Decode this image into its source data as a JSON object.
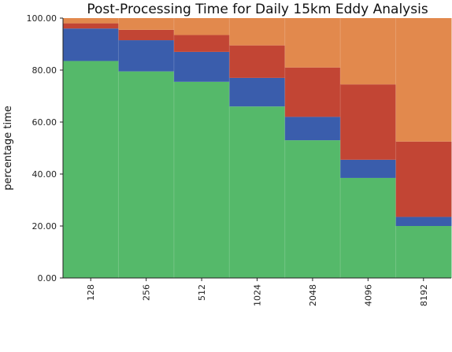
{
  "chart_data": {
    "type": "area",
    "stacked": true,
    "step": true,
    "title": "Post-Processing Time for Daily 15km Eddy Analysis",
    "xlabel": "",
    "ylabel": "percentage time",
    "ylim": [
      0,
      100
    ],
    "yticks": [
      "0.00",
      "20.00",
      "40.00",
      "60.00",
      "80.00",
      "100.00"
    ],
    "categories": [
      "128",
      "256",
      "512",
      "1024",
      "2048",
      "4096",
      "8192"
    ],
    "legend": "none",
    "series": [
      {
        "color": "#55b96a",
        "values": [
          83.5,
          79.5,
          75.5,
          66.0,
          53.0,
          38.5,
          20.0
        ]
      },
      {
        "color": "#3a5dac",
        "values": [
          12.5,
          12.0,
          11.5,
          11.0,
          9.0,
          7.0,
          3.5
        ]
      },
      {
        "color": "#c24534",
        "values": [
          2.0,
          4.0,
          6.5,
          12.5,
          19.0,
          29.0,
          29.0
        ]
      },
      {
        "color": "#e2894d",
        "values": [
          2.0,
          4.5,
          6.5,
          10.5,
          19.0,
          25.5,
          47.5
        ]
      }
    ]
  }
}
